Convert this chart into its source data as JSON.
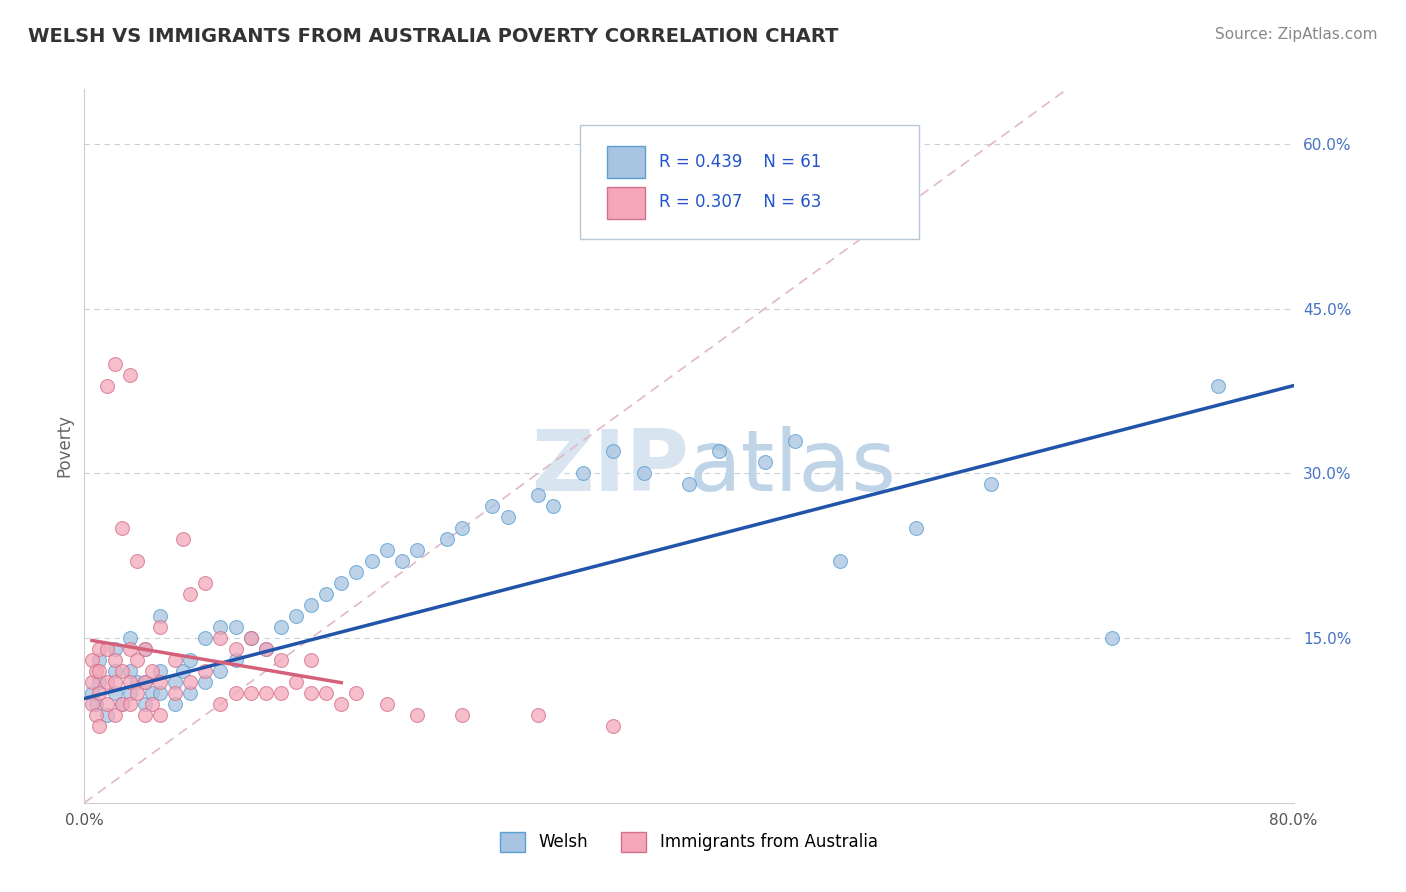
{
  "title": "WELSH VS IMMIGRANTS FROM AUSTRALIA POVERTY CORRELATION CHART",
  "source": "Source: ZipAtlas.com",
  "ylabel": "Poverty",
  "xlim": [
    0.0,
    0.8
  ],
  "ylim": [
    0.0,
    0.65
  ],
  "xtick_pos": [
    0.0,
    0.1,
    0.2,
    0.3,
    0.4,
    0.5,
    0.6,
    0.7,
    0.8
  ],
  "xticklabels": [
    "0.0%",
    "",
    "",
    "",
    "",
    "",
    "",
    "",
    "80.0%"
  ],
  "ytick_positions": [
    0.15,
    0.3,
    0.45,
    0.6
  ],
  "ytick_labels": [
    "15.0%",
    "30.0%",
    "45.0%",
    "60.0%"
  ],
  "welsh_color": "#a8c4e0",
  "welsh_edge": "#5a9fd4",
  "immigrants_color": "#f4a7b9",
  "immigrants_edge": "#d4708a",
  "regression_welsh_color": "#2255aa",
  "regression_immigrants_color": "#d4607a",
  "diagonal_color": "#e0b8c8",
  "grid_color": "#c8d0d8",
  "watermark_color": "#d8e4f0",
  "legend_R_welsh": "0.439",
  "legend_N_welsh": "61",
  "legend_R_immigrants": "0.307",
  "legend_N_immigrants": "63",
  "legend_text_color": "#2255cc",
  "title_color": "#333333",
  "source_color": "#888888",
  "welsh_x": [
    0.005,
    0.008,
    0.01,
    0.01,
    0.015,
    0.02,
    0.02,
    0.02,
    0.025,
    0.03,
    0.03,
    0.03,
    0.035,
    0.04,
    0.04,
    0.04,
    0.045,
    0.05,
    0.05,
    0.05,
    0.06,
    0.06,
    0.065,
    0.07,
    0.07,
    0.08,
    0.08,
    0.09,
    0.09,
    0.1,
    0.1,
    0.11,
    0.12,
    0.13,
    0.14,
    0.15,
    0.16,
    0.17,
    0.18,
    0.19,
    0.2,
    0.21,
    0.22,
    0.24,
    0.25,
    0.27,
    0.28,
    0.3,
    0.31,
    0.33,
    0.35,
    0.37,
    0.4,
    0.42,
    0.45,
    0.47,
    0.5,
    0.55,
    0.6,
    0.68,
    0.75
  ],
  "welsh_y": [
    0.1,
    0.09,
    0.11,
    0.13,
    0.08,
    0.1,
    0.12,
    0.14,
    0.09,
    0.1,
    0.12,
    0.15,
    0.11,
    0.09,
    0.11,
    0.14,
    0.1,
    0.1,
    0.12,
    0.17,
    0.09,
    0.11,
    0.12,
    0.1,
    0.13,
    0.11,
    0.15,
    0.12,
    0.16,
    0.13,
    0.16,
    0.15,
    0.14,
    0.16,
    0.17,
    0.18,
    0.19,
    0.2,
    0.21,
    0.22,
    0.23,
    0.22,
    0.23,
    0.24,
    0.25,
    0.27,
    0.26,
    0.28,
    0.27,
    0.3,
    0.32,
    0.3,
    0.29,
    0.32,
    0.31,
    0.33,
    0.22,
    0.25,
    0.29,
    0.15,
    0.38
  ],
  "immigrants_x": [
    0.005,
    0.005,
    0.005,
    0.008,
    0.008,
    0.01,
    0.01,
    0.01,
    0.01,
    0.015,
    0.015,
    0.015,
    0.015,
    0.02,
    0.02,
    0.02,
    0.02,
    0.025,
    0.025,
    0.025,
    0.03,
    0.03,
    0.03,
    0.03,
    0.035,
    0.035,
    0.035,
    0.04,
    0.04,
    0.04,
    0.045,
    0.045,
    0.05,
    0.05,
    0.05,
    0.06,
    0.06,
    0.065,
    0.07,
    0.07,
    0.08,
    0.08,
    0.09,
    0.09,
    0.1,
    0.1,
    0.11,
    0.11,
    0.12,
    0.12,
    0.13,
    0.13,
    0.14,
    0.15,
    0.15,
    0.16,
    0.17,
    0.18,
    0.2,
    0.22,
    0.25,
    0.3,
    0.35
  ],
  "immigrants_y": [
    0.09,
    0.11,
    0.13,
    0.08,
    0.12,
    0.07,
    0.1,
    0.12,
    0.14,
    0.09,
    0.11,
    0.14,
    0.38,
    0.08,
    0.11,
    0.13,
    0.4,
    0.09,
    0.12,
    0.25,
    0.09,
    0.11,
    0.14,
    0.39,
    0.1,
    0.13,
    0.22,
    0.08,
    0.11,
    0.14,
    0.09,
    0.12,
    0.08,
    0.11,
    0.16,
    0.1,
    0.13,
    0.24,
    0.11,
    0.19,
    0.12,
    0.2,
    0.09,
    0.15,
    0.1,
    0.14,
    0.1,
    0.15,
    0.1,
    0.14,
    0.1,
    0.13,
    0.11,
    0.1,
    0.13,
    0.1,
    0.09,
    0.1,
    0.09,
    0.08,
    0.08,
    0.08,
    0.07
  ],
  "welsh_marker_size": 100,
  "immigrants_marker_size": 100,
  "regression_linewidth": 2.5,
  "diagonal_linewidth": 1.2,
  "title_fontsize": 14,
  "tick_fontsize": 11,
  "legend_fontsize": 12,
  "source_fontsize": 11
}
